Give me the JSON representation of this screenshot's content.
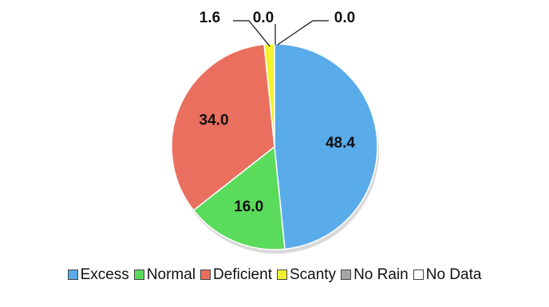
{
  "chart_data": {
    "type": "pie",
    "categories": [
      "Excess",
      "Normal",
      "Deficient",
      "Scanty",
      "No Rain",
      "No Data"
    ],
    "values": [
      48.4,
      16.0,
      34.0,
      1.6,
      0.0,
      0.0
    ],
    "value_labels": [
      "48.4",
      "16.0",
      "34.0",
      "1.6",
      "0.0",
      "0.0"
    ],
    "colors": [
      "#5aabea",
      "#5bdb5b",
      "#ea6f5e",
      "#f2f230",
      "#a6a6a6",
      "#ffffff"
    ],
    "start_angle_deg": 0,
    "direction": "clockwise",
    "legend_position": "bottom"
  }
}
